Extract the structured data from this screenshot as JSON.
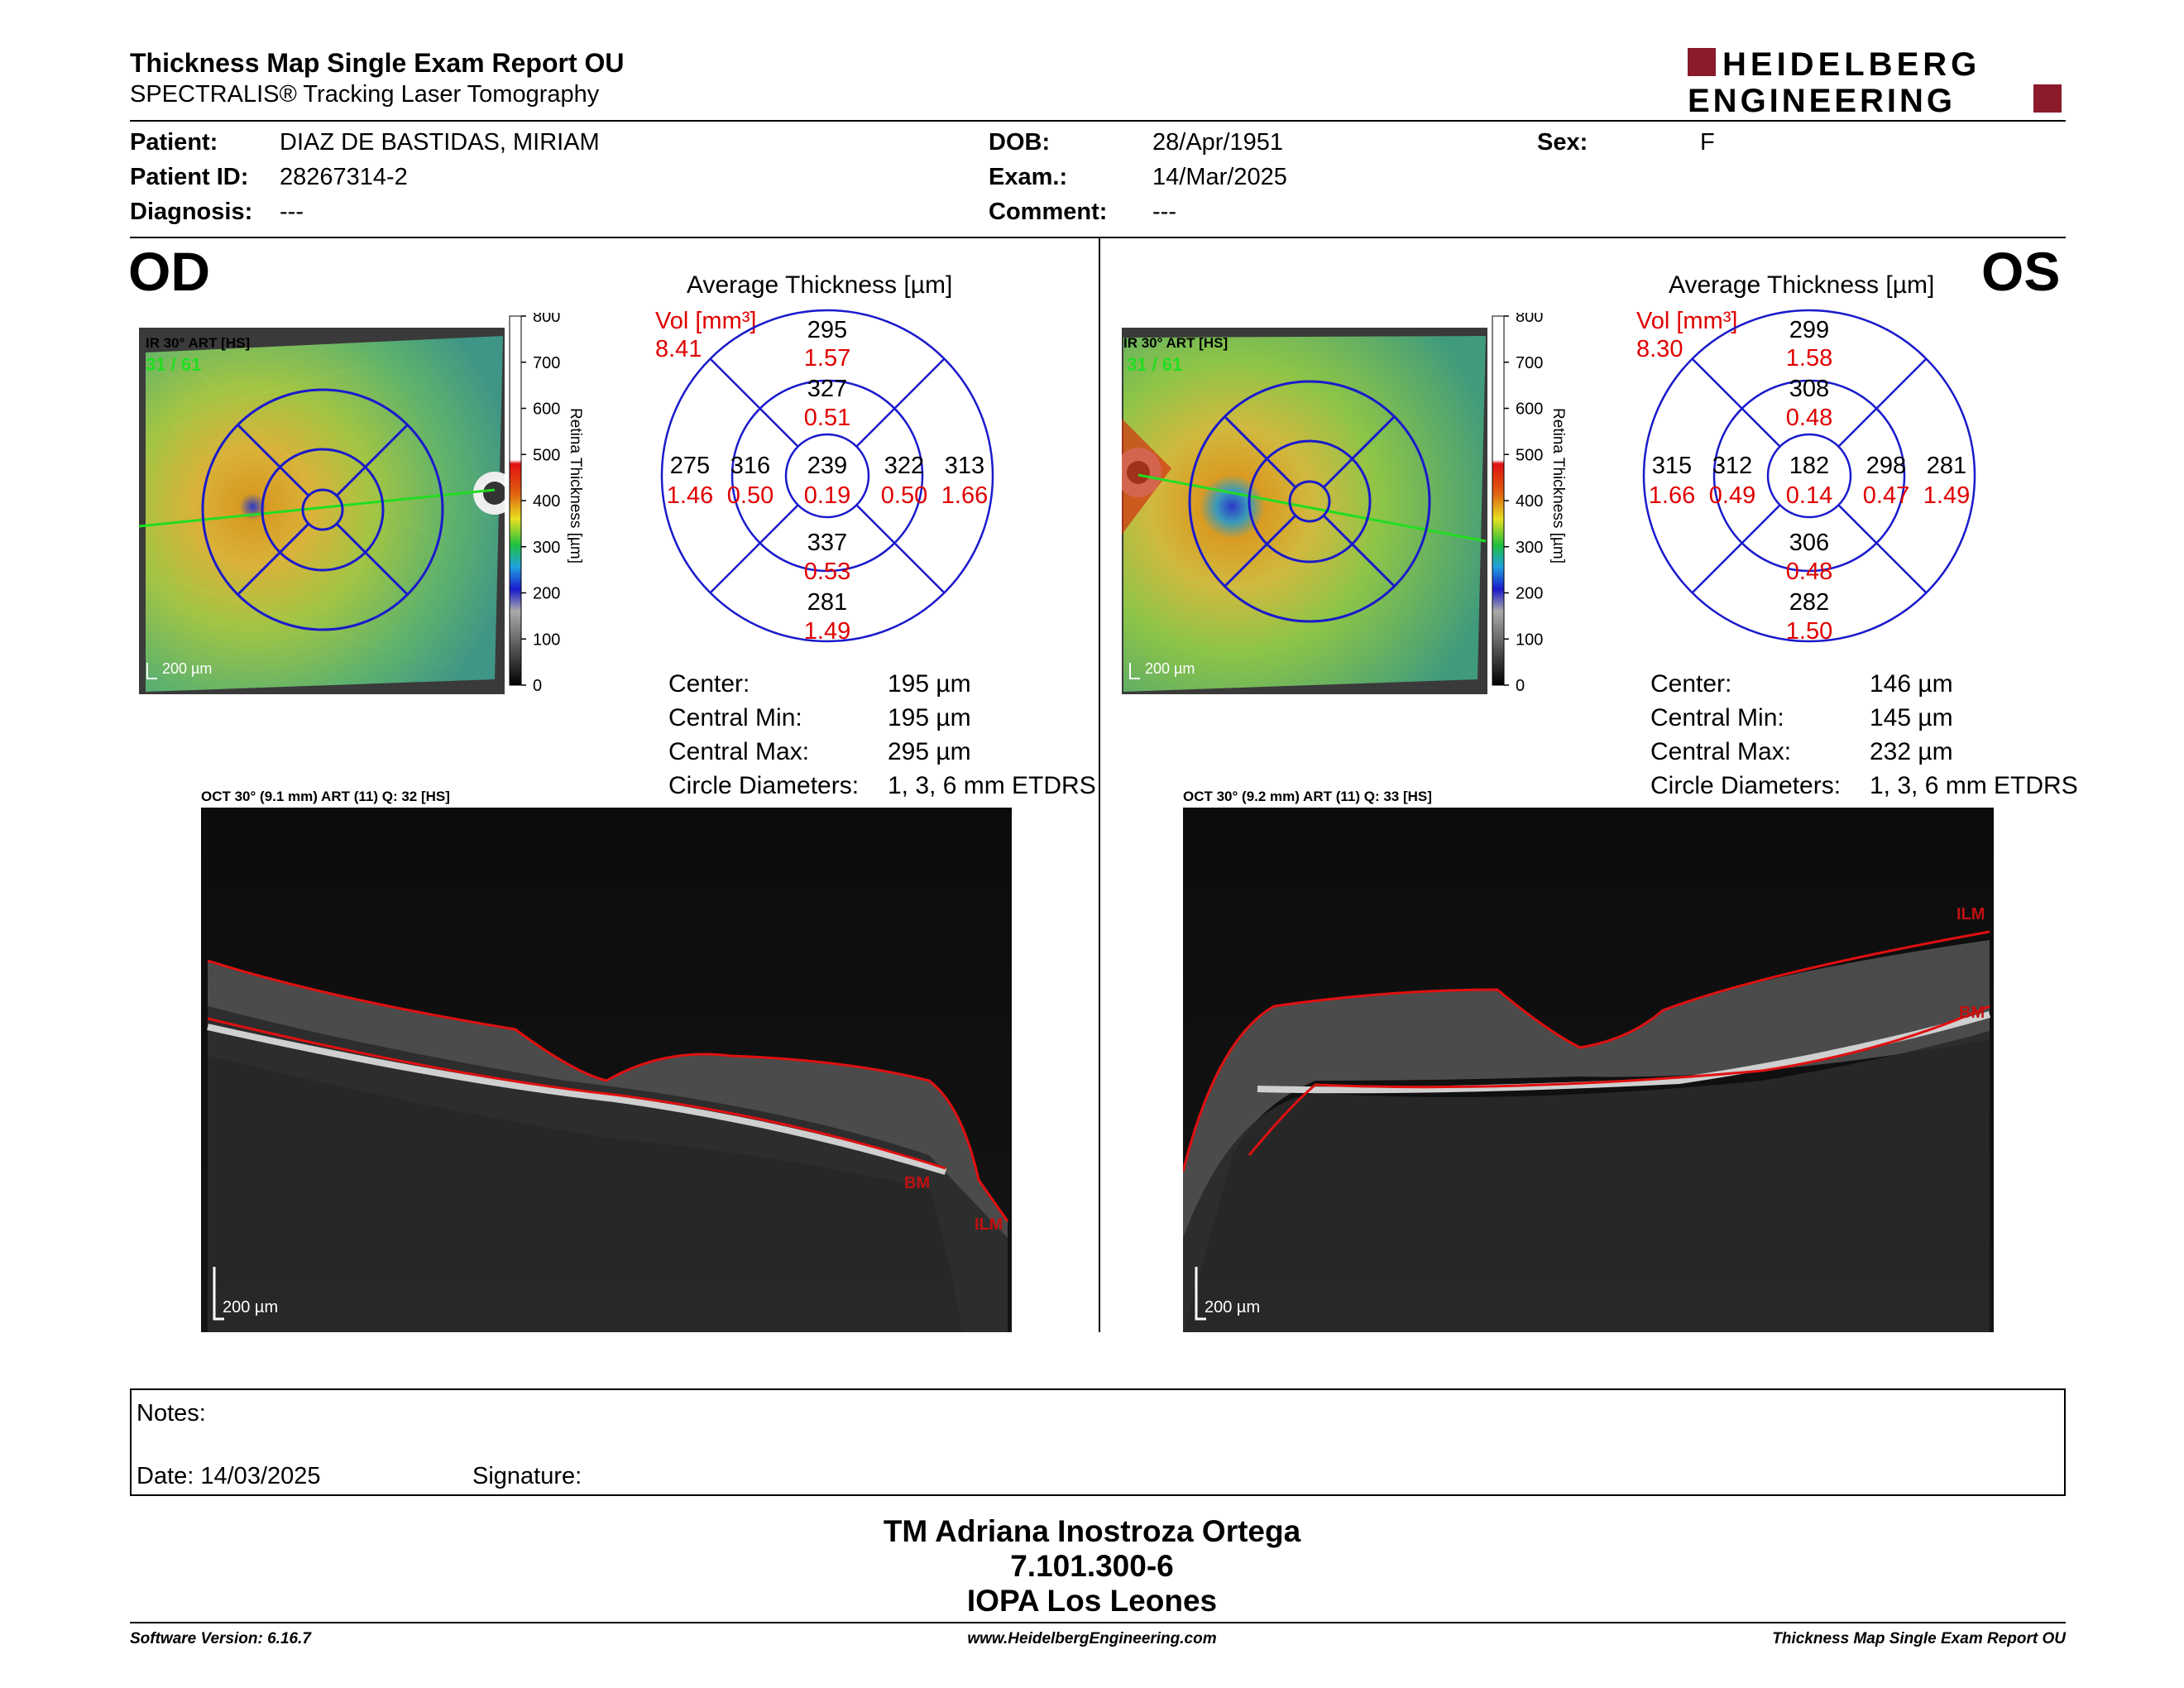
{
  "header": {
    "title": "Thickness Map Single Exam Report OU",
    "subtitle": "SPECTRALIS® Tracking Laser Tomography",
    "logo_line1": "HEIDELBERG",
    "logo_line2": "ENGINEERING",
    "logo_color": "#8b1a2b"
  },
  "patient": {
    "patient_label": "Patient:",
    "patient_value": "DIAZ DE BASTIDAS, MIRIAM",
    "id_label": "Patient ID:",
    "id_value": "28267314-2",
    "diagnosis_label": "Diagnosis:",
    "diagnosis_value": "---",
    "dob_label": "DOB:",
    "dob_value": "28/Apr/1951",
    "exam_label": "Exam.:",
    "exam_value": "14/Mar/2025",
    "comment_label": "Comment:",
    "comment_value": "---",
    "sex_label": "Sex:",
    "sex_value": "F"
  },
  "od": {
    "eye": "OD",
    "ir_label": "IR 30° ART [HS]",
    "frame_label": "31 / 61",
    "scale_label": "200 µm",
    "colorbar_ticks": [
      "800",
      "700",
      "600",
      "500",
      "400",
      "300",
      "200",
      "100",
      "0"
    ],
    "colorbar_title": "Retina Thickness [µm]",
    "avg_title": "Average Thickness [µm]",
    "vol_label": "Vol [mm³]",
    "vol_value": "8.41",
    "grid": {
      "sup_outer_t": "295",
      "sup_outer_v": "1.57",
      "sup_inner_t": "327",
      "sup_inner_v": "0.51",
      "tem_outer_t": "275",
      "tem_outer_v": "1.46",
      "tem_inner_t": "316",
      "tem_inner_v": "0.50",
      "center_t": "239",
      "center_v": "0.19",
      "nas_inner_t": "322",
      "nas_inner_v": "0.50",
      "nas_outer_t": "313",
      "nas_outer_v": "1.66",
      "inf_inner_t": "337",
      "inf_inner_v": "0.53",
      "inf_outer_t": "281",
      "inf_outer_v": "1.49"
    },
    "stats": {
      "center_label": "Center:",
      "center_value": "195 µm",
      "cmin_label": "Central Min:",
      "cmin_value": "195 µm",
      "cmax_label": "Central Max:",
      "cmax_value": "295 µm",
      "circ_label": "Circle Diameters:",
      "circ_value": "1, 3, 6 mm ETDRS"
    },
    "oct_label": "OCT 30° (9.1 mm) ART (11) Q: 32 [HS]",
    "oct_scale": "200 µm",
    "ilm": "ILM",
    "bm": "BM"
  },
  "os": {
    "eye": "OS",
    "ir_label": "IR 30° ART [HS]",
    "frame_label": "31 / 61",
    "scale_label": "200 µm",
    "colorbar_ticks": [
      "800",
      "700",
      "600",
      "500",
      "400",
      "300",
      "200",
      "100",
      "0"
    ],
    "colorbar_title": "Retina Thickness [µm]",
    "avg_title": "Average Thickness [µm]",
    "vol_label": "Vol [mm³]",
    "vol_value": "8.30",
    "grid": {
      "sup_outer_t": "299",
      "sup_outer_v": "1.58",
      "sup_inner_t": "308",
      "sup_inner_v": "0.48",
      "tem_outer_t": "315",
      "tem_outer_v": "1.66",
      "tem_inner_t": "312",
      "tem_inner_v": "0.49",
      "center_t": "182",
      "center_v": "0.14",
      "nas_inner_t": "298",
      "nas_inner_v": "0.47",
      "nas_outer_t": "281",
      "nas_outer_v": "1.49",
      "inf_inner_t": "306",
      "inf_inner_v": "0.48",
      "inf_outer_t": "282",
      "inf_outer_v": "1.50"
    },
    "stats": {
      "center_label": "Center:",
      "center_value": "146 µm",
      "cmin_label": "Central Min:",
      "cmin_value": "145 µm",
      "cmax_label": "Central Max:",
      "cmax_value": "232 µm",
      "circ_label": "Circle Diameters:",
      "circ_value": "1, 3, 6 mm ETDRS"
    },
    "oct_label": "OCT 30° (9.2 mm) ART (11) Q: 33 [HS]",
    "oct_scale": "200 µm",
    "ilm": "ILM",
    "bm": "BM"
  },
  "notes": {
    "notes_label": "Notes:",
    "date_label": "Date: 14/03/2025",
    "signature_label": "Signature:"
  },
  "signoff": {
    "line1": "TM Adriana Inostroza Ortega",
    "line2": "7.101.300-6",
    "line3": "IOPA Los Leones"
  },
  "footer": {
    "software": "Software Version: 6.16.7",
    "website": "www.HeidelbergEngineering.com",
    "report": "Thickness Map Single Exam Report OU"
  },
  "colors": {
    "grid_blue": "#1a1acc",
    "vol_red": "#e00000",
    "frame_green": "#22dd22",
    "seg_red": "#e01010"
  }
}
